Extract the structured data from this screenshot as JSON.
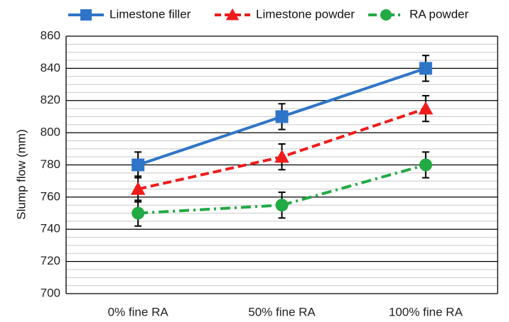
{
  "chart_data": {
    "type": "line",
    "categories": [
      "0% fine RA",
      "50% fine RA",
      "100% fine RA"
    ],
    "ylabel": "Slump flow (mm)",
    "xlabel": "",
    "ylim": [
      700,
      860
    ],
    "yticks": [
      700,
      720,
      740,
      760,
      780,
      800,
      820,
      840,
      860
    ],
    "grid": {
      "major": true,
      "minor": true
    },
    "legend": "top",
    "series": [
      {
        "name": "Limestone filler",
        "values": [
          780,
          810,
          840
        ],
        "error": [
          8,
          8,
          8
        ],
        "color": "#2e75c8",
        "dash": "solid",
        "marker": "square"
      },
      {
        "name": "Limestone powder",
        "values": [
          765,
          785,
          815
        ],
        "error": [
          8,
          8,
          8
        ],
        "color": "#ee1c1c",
        "dash": "dashed",
        "marker": "triangle"
      },
      {
        "name": "RA powder",
        "values": [
          750,
          755,
          780
        ],
        "error": [
          8,
          8,
          8
        ],
        "color": "#22aa44",
        "dash": "dash-dot",
        "marker": "circle"
      }
    ]
  }
}
